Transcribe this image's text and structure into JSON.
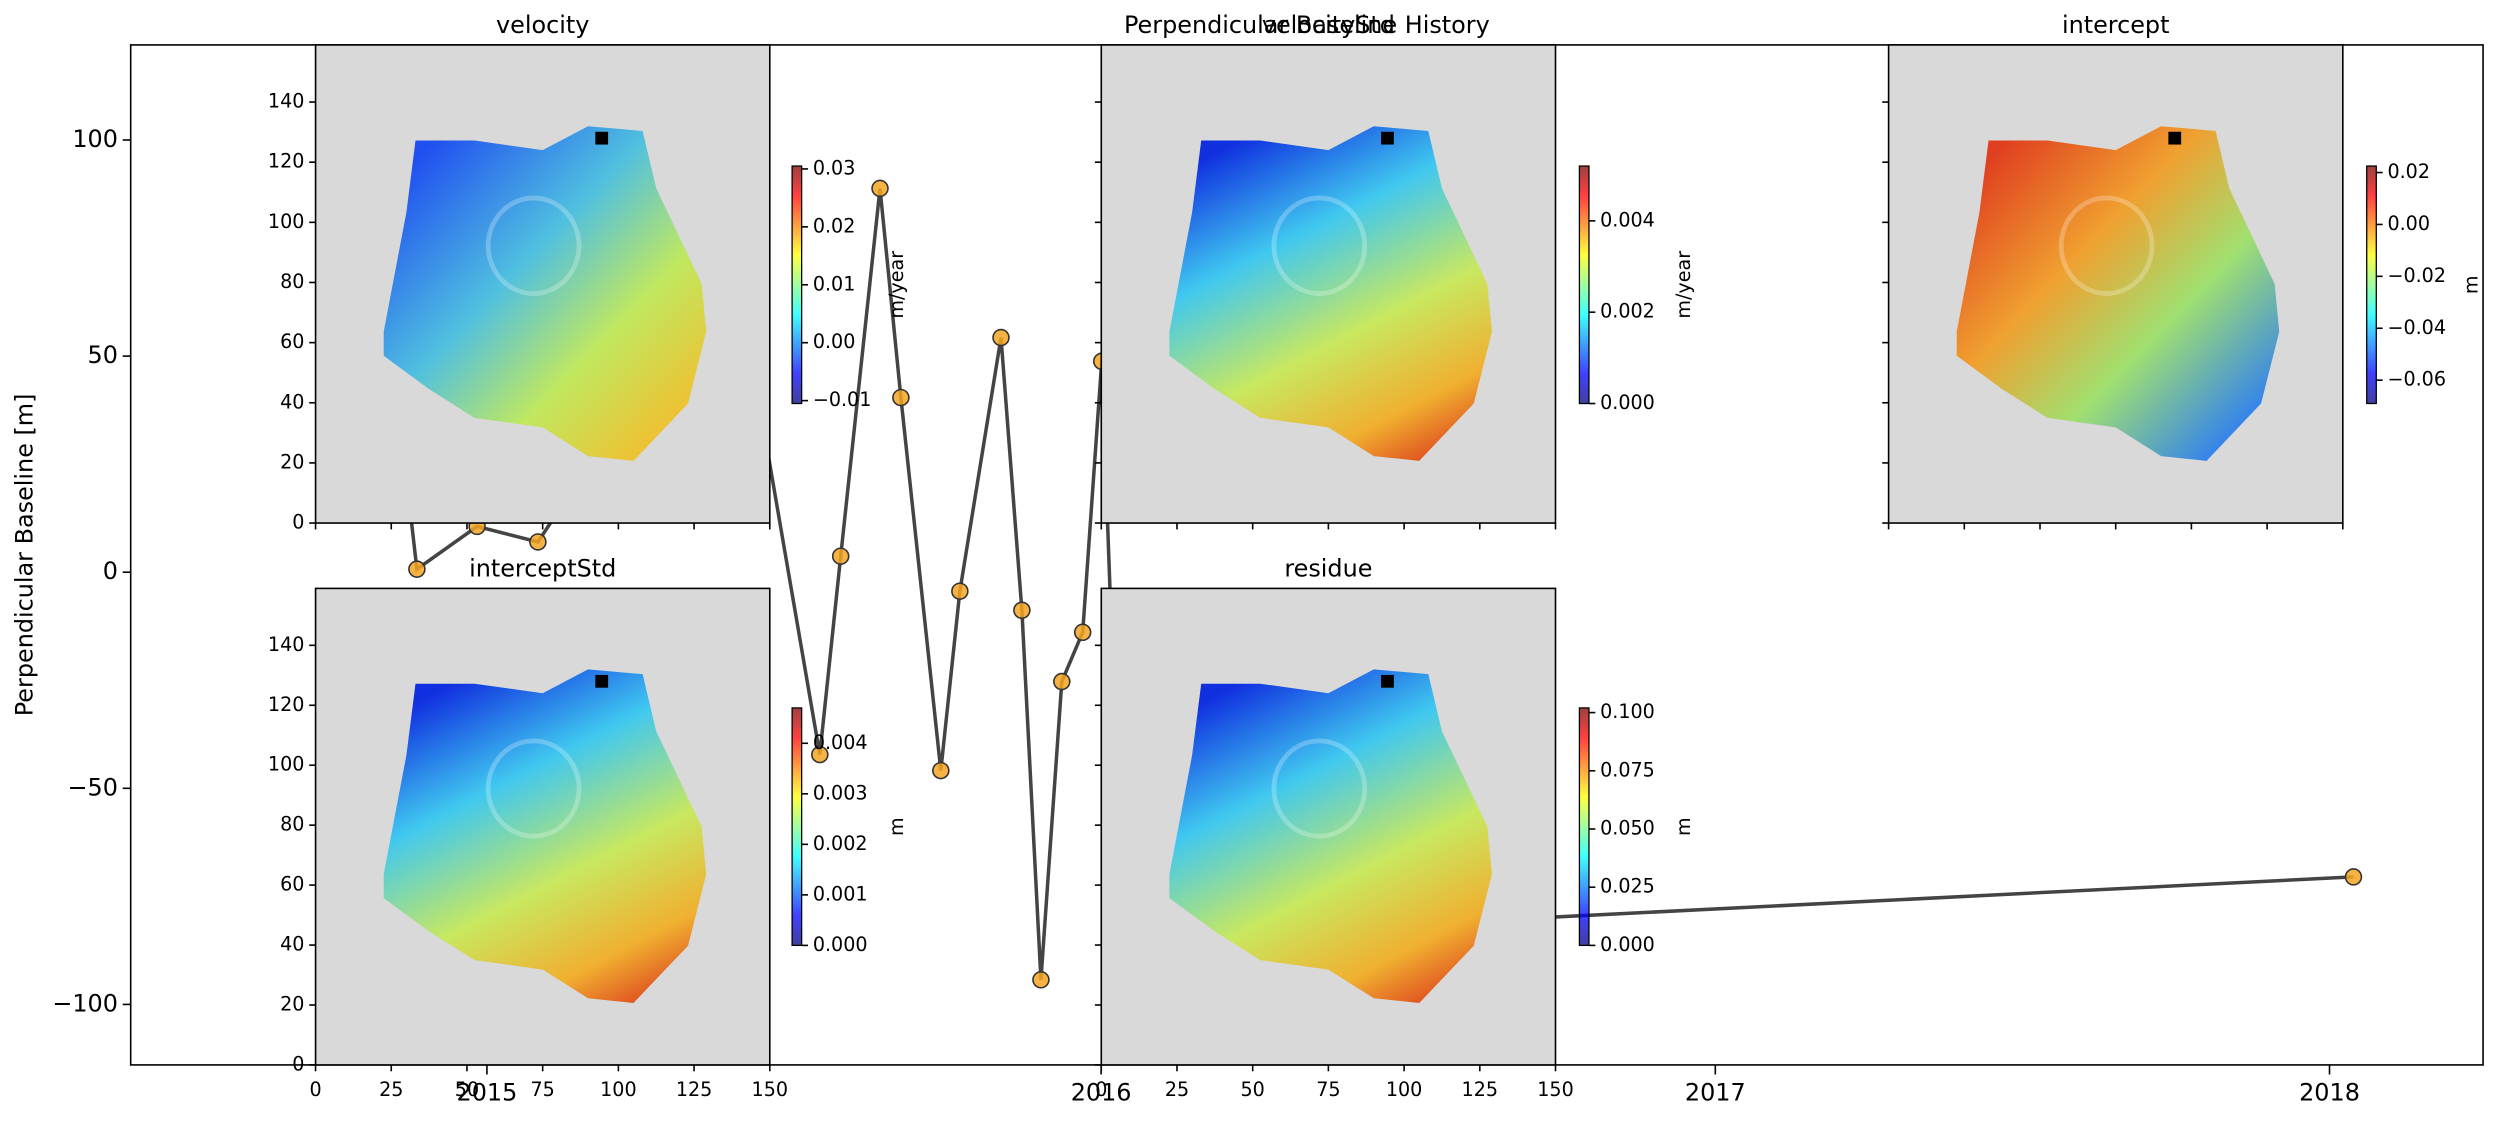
{
  "chart_data": [
    {
      "type": "line",
      "title": "Perpendicular Baseline History",
      "ylabel": "Perpendicular Baseline [m]",
      "x": [
        2014.83,
        2014.886,
        2014.984,
        2015.083,
        2015.4,
        2015.542,
        2015.576,
        2015.64,
        2015.674,
        2015.739,
        2015.77,
        2015.837,
        2015.871,
        2015.902,
        2015.936,
        2015.97,
        2016.001,
        2016.035,
        2018.039
      ],
      "series": [
        {
          "values": [
            70,
            0.7,
            10.6,
            7.0,
            75,
            -42.2,
            3.7,
            88.8,
            40.4,
            -45.9,
            -4.4,
            54.3,
            -8.8,
            -94.3,
            -25.3,
            -13.9,
            48.8,
            -84.8,
            -70.5
          ],
          "color": "#444444",
          "marker_color": "#f5a623"
        }
      ],
      "xlim": [
        2014.42,
        2018.25
      ],
      "ylim": [
        -114,
        122
      ],
      "xticks": [
        2015,
        2016,
        2017,
        2018
      ],
      "yticks": [
        {
          "value": -100,
          "label": "−100"
        },
        {
          "value": -50,
          "label": "−50"
        },
        0,
        50,
        100
      ]
    },
    {
      "type": "image",
      "title": "velocity",
      "xlim": [
        0,
        150
      ],
      "ylim": [
        0,
        159
      ],
      "xticks": [
        0,
        25,
        50,
        75,
        100,
        125,
        150
      ],
      "yticks": [
        0,
        20,
        40,
        60,
        80,
        100,
        120,
        140
      ],
      "show_xtick_labels": false,
      "show_ytick_labels": true,
      "colorbar": {
        "label": "m/year",
        "clim": [
          -0.0105,
          0.0305
        ],
        "colormap": "jet",
        "ticks": [
          {
            "value": -0.01,
            "label": "−0.01"
          },
          {
            "value": 0,
            "label": "0.00"
          },
          0.01,
          0.02,
          0.03
        ]
      }
    },
    {
      "type": "image",
      "title": "velocityStd",
      "xlim": [
        0,
        150
      ],
      "ylim": [
        0,
        159
      ],
      "xticks": [
        0,
        25,
        50,
        75,
        100,
        125,
        150
      ],
      "yticks": [
        0,
        20,
        40,
        60,
        80,
        100,
        120,
        140
      ],
      "show_xtick_labels": false,
      "show_ytick_labels": false,
      "colorbar": {
        "label": "m/year",
        "clim": [
          0,
          0.0052
        ],
        "colormap": "jet",
        "ticks": [
          {
            "value": 0,
            "label": "0.000"
          },
          {
            "value": 0.002,
            "label": "0.002"
          },
          {
            "value": 0.004,
            "label": "0.004"
          }
        ]
      }
    },
    {
      "type": "image",
      "title": "intercept",
      "xlim": [
        0,
        150
      ],
      "ylim": [
        0,
        159
      ],
      "xticks": [
        0,
        25,
        50,
        75,
        100,
        125,
        150
      ],
      "yticks": [
        0,
        20,
        40,
        60,
        80,
        100,
        120,
        140
      ],
      "show_xtick_labels": false,
      "show_ytick_labels": false,
      "colorbar": {
        "label": "m",
        "clim": [
          -0.069,
          0.0225
        ],
        "colormap": "jet",
        "ticks": [
          {
            "value": -0.06,
            "label": "−0.06"
          },
          {
            "value": -0.04,
            "label": "−0.04"
          },
          {
            "value": -0.02,
            "label": "−0.02"
          },
          {
            "value": 0,
            "label": "0.00"
          },
          0.02
        ]
      }
    },
    {
      "type": "image",
      "title": "interceptStd",
      "xlim": [
        0,
        150
      ],
      "ylim": [
        0,
        159
      ],
      "xticks": [
        0,
        25,
        50,
        75,
        100,
        125,
        150
      ],
      "yticks": [
        0,
        20,
        40,
        60,
        80,
        100,
        120,
        140
      ],
      "show_xtick_labels": true,
      "show_ytick_labels": true,
      "colorbar": {
        "label": "m",
        "clim": [
          0,
          0.0047
        ],
        "colormap": "jet",
        "ticks": [
          {
            "value": 0,
            "label": "0.000"
          },
          {
            "value": 0.001,
            "label": "0.001"
          },
          {
            "value": 0.002,
            "label": "0.002"
          },
          {
            "value": 0.003,
            "label": "0.003"
          },
          {
            "value": 0.004,
            "label": "0.004"
          }
        ]
      }
    },
    {
      "type": "image",
      "title": "residue",
      "xlim": [
        0,
        150
      ],
      "ylim": [
        0,
        159
      ],
      "xticks": [
        0,
        25,
        50,
        75,
        100,
        125,
        150
      ],
      "yticks": [
        0,
        20,
        40,
        60,
        80,
        100,
        120,
        140
      ],
      "show_xtick_labels": true,
      "show_ytick_labels": false,
      "colorbar": {
        "label": "m",
        "clim": [
          0,
          0.102
        ],
        "colormap": "jet",
        "ticks": [
          {
            "value": 0,
            "label": "0.000"
          },
          0.025,
          {
            "value": 0.05,
            "label": "0.050"
          },
          {
            "value": 0.075,
            "label": "0.075"
          },
          {
            "value": 0.1,
            "label": "0.100"
          }
        ]
      }
    }
  ]
}
